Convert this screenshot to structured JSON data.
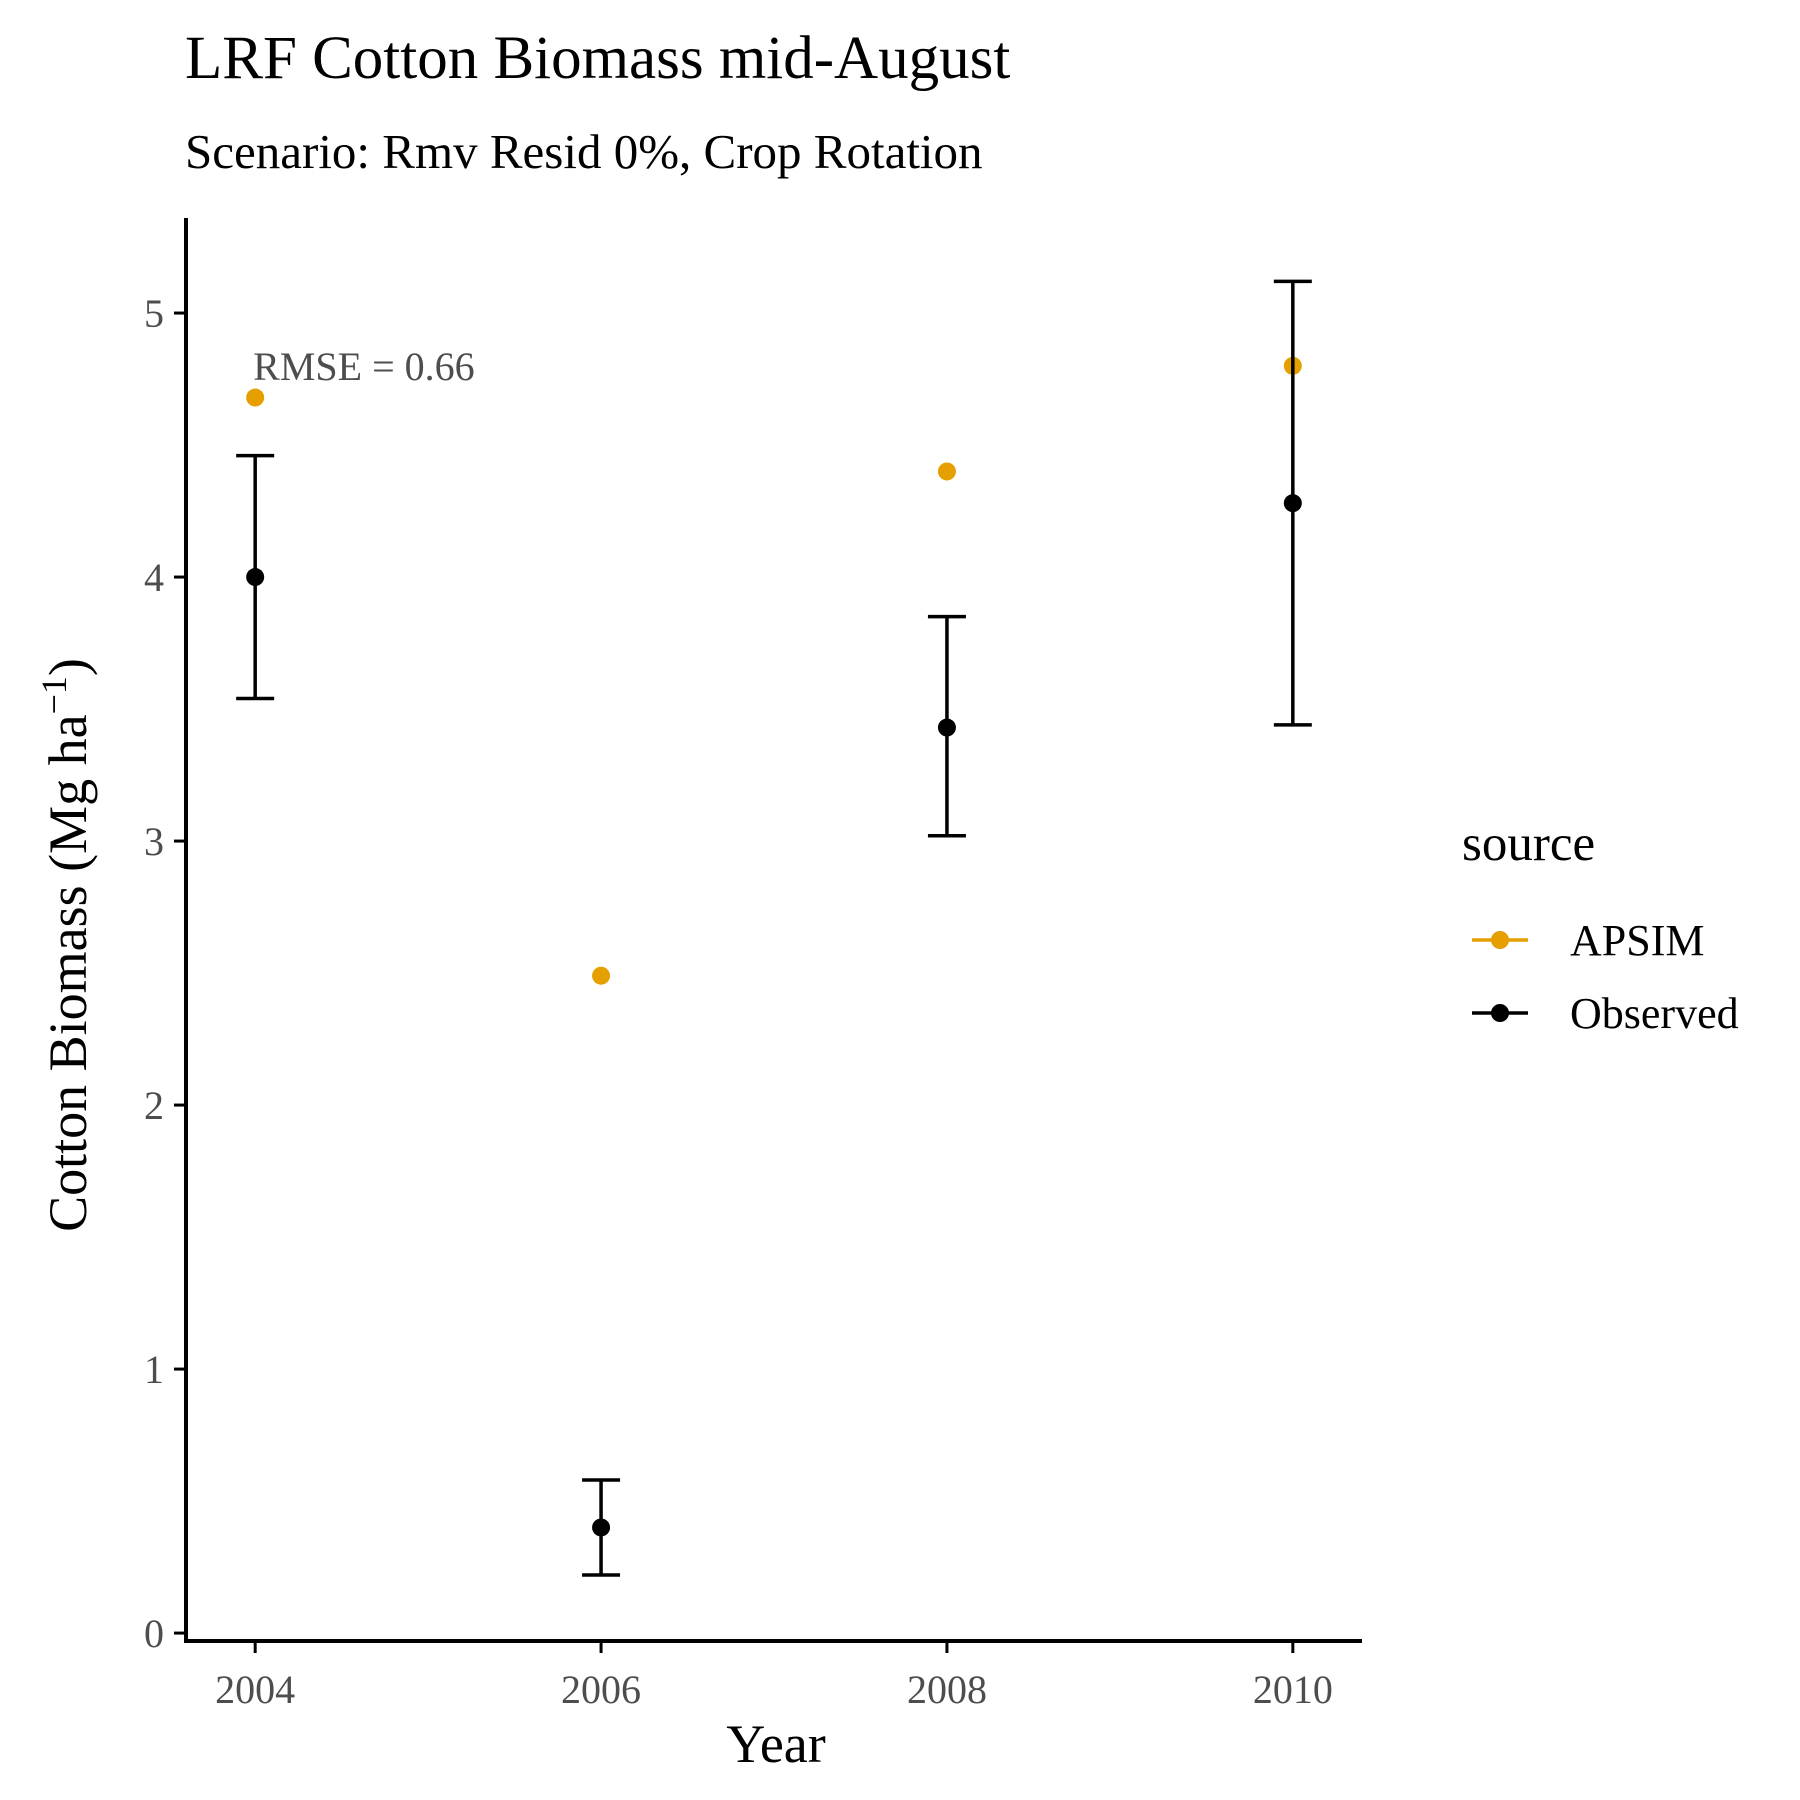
{
  "chart_data": {
    "type": "scatter",
    "title": "LRF Cotton Biomass mid-August",
    "subtitle": "Scenario: Rmv Resid 0%, Crop Rotation",
    "xlabel": "Year",
    "ylabel": "Cotton Biomass (Mg ha",
    "ylabel_superscript": "−1",
    "xlim": [
      2003.6,
      2010.4
    ],
    "ylim": [
      -0.03,
      5.36
    ],
    "x_ticks": [
      2004,
      2006,
      2008,
      2010
    ],
    "y_ticks": [
      0,
      1,
      2,
      3,
      4,
      5
    ],
    "grid": false,
    "legend": {
      "title": "source",
      "position": "right",
      "entries": [
        {
          "label": "APSIM",
          "color": "#E69F00"
        },
        {
          "label": "Observed",
          "color": "#000000"
        }
      ]
    },
    "annotation": {
      "text": "RMSE = 0.66",
      "x": 2004,
      "y": 4.8
    },
    "series": [
      {
        "name": "APSIM",
        "color": "#E69F00",
        "points": [
          {
            "x": 2004,
            "y": 4.68
          },
          {
            "x": 2006,
            "y": 2.49
          },
          {
            "x": 2008,
            "y": 4.4
          },
          {
            "x": 2010,
            "y": 4.8
          }
        ]
      },
      {
        "name": "Observed",
        "color": "#000000",
        "points": [
          {
            "x": 2004,
            "y": 4.0,
            "ymin": 3.54,
            "ymax": 4.46
          },
          {
            "x": 2006,
            "y": 0.4,
            "ymin": 0.22,
            "ymax": 0.58
          },
          {
            "x": 2008,
            "y": 3.43,
            "ymin": 3.02,
            "ymax": 3.85
          },
          {
            "x": 2010,
            "y": 4.28,
            "ymin": 3.44,
            "ymax": 5.12
          }
        ]
      }
    ]
  }
}
